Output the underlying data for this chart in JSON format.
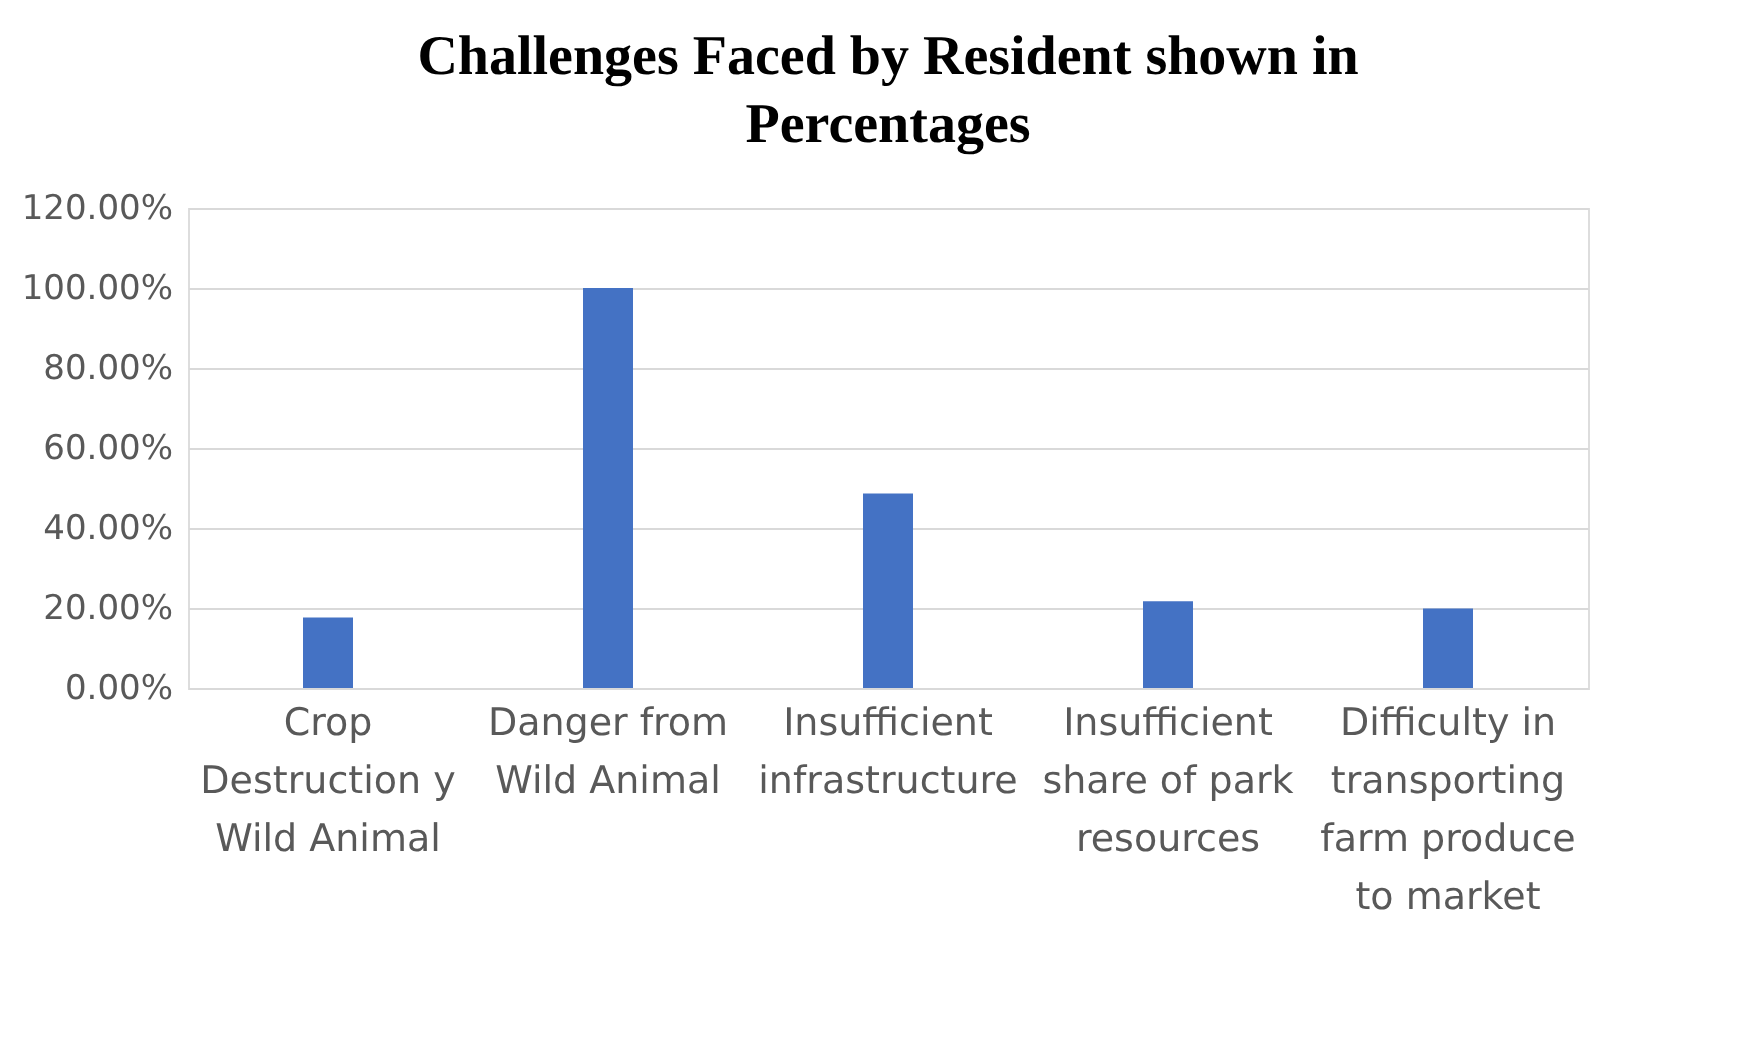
{
  "chart_data": {
    "type": "bar",
    "title": "Challenges Faced by Resident shown in Percentages",
    "categories": [
      "Crop Destruction y Wild Animal",
      "Danger from Wild Animal",
      "Insufficient infrastructure",
      "Insufficient share of park resources",
      "Difficulty in transporting farm produce to market"
    ],
    "values": [
      17.6,
      100,
      48.6,
      21.7,
      19.9
    ],
    "color": "#4472c4",
    "ylim": [
      0,
      120
    ],
    "yticks": [
      {
        "value": 0,
        "label": "0.00%"
      },
      {
        "value": 20,
        "label": "20.00%"
      },
      {
        "value": 40,
        "label": "40.00%"
      },
      {
        "value": 60,
        "label": "60.00%"
      },
      {
        "value": 80,
        "label": "80.00%"
      },
      {
        "value": 100,
        "label": "100.00%"
      },
      {
        "value": 120,
        "label": "120.00%"
      }
    ],
    "grid": "y"
  }
}
